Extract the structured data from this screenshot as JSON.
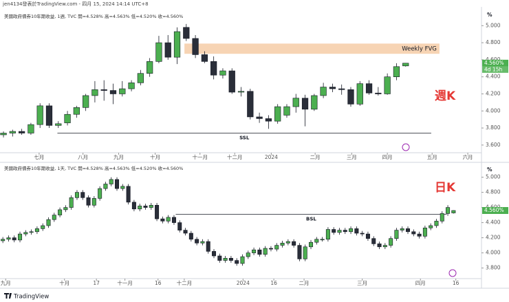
{
  "header": "jen4134發表於TradingView.com - 四月 15, 2024 14:14 UTC+8",
  "footer": "TradingView",
  "chart_data": [
    {
      "type": "candlestick",
      "legend": "美國政府債券10年期收益, 1週, TVC  開=4.528%  高=4.563%  低=4.520%  收=4.560%",
      "unit": "%",
      "annotation": "週K",
      "countdown": "4d 15h",
      "up_color": "#4caf50",
      "down_color": "#2a2e39",
      "open": [
        3.72,
        3.74,
        3.76,
        3.74,
        3.84,
        4.06,
        3.83,
        3.86,
        3.96,
        4.04,
        4.18,
        4.25,
        4.24,
        4.2,
        4.26,
        4.33,
        4.44,
        4.58,
        4.8,
        4.63,
        4.98,
        4.85,
        4.66,
        4.58,
        4.42,
        4.47,
        4.22,
        4.23,
        3.93,
        3.91,
        3.88,
        3.95,
        4.05,
        4.15,
        4.02,
        4.18,
        4.28,
        4.26,
        4.25,
        4.08,
        4.32,
        4.21,
        4.2,
        4.4,
        4.528
      ],
      "high": [
        3.76,
        3.78,
        3.79,
        3.86,
        4.09,
        4.09,
        3.88,
        4.0,
        4.06,
        4.2,
        4.35,
        4.36,
        4.32,
        4.35,
        4.36,
        4.48,
        4.62,
        4.88,
        4.89,
        4.98,
        5.02,
        4.89,
        4.7,
        4.64,
        4.5,
        4.5,
        4.28,
        4.26,
        3.98,
        3.95,
        4.08,
        4.08,
        4.2,
        4.19,
        4.2,
        4.33,
        4.32,
        4.31,
        4.28,
        4.35,
        4.36,
        4.28,
        4.44,
        4.56,
        4.563
      ],
      "low": [
        3.69,
        3.7,
        3.72,
        3.72,
        3.8,
        3.8,
        3.8,
        3.83,
        3.92,
        4.0,
        4.1,
        4.12,
        4.08,
        4.17,
        4.23,
        4.3,
        4.4,
        4.56,
        4.6,
        4.55,
        4.82,
        4.62,
        4.56,
        4.37,
        4.38,
        4.2,
        4.17,
        3.9,
        3.86,
        3.79,
        3.85,
        3.92,
        3.98,
        3.82,
        4.0,
        4.15,
        4.22,
        4.19,
        4.05,
        4.06,
        4.19,
        4.18,
        4.19,
        4.36,
        4.52
      ],
      "close": [
        3.74,
        3.76,
        3.74,
        3.84,
        4.06,
        3.83,
        3.85,
        3.96,
        4.04,
        4.18,
        4.25,
        4.24,
        4.2,
        4.26,
        4.33,
        4.44,
        4.58,
        4.8,
        4.63,
        4.93,
        4.85,
        4.66,
        4.58,
        4.42,
        4.47,
        4.22,
        4.23,
        3.93,
        3.91,
        3.88,
        4.05,
        4.05,
        4.15,
        4.02,
        4.18,
        4.28,
        4.26,
        4.25,
        4.08,
        4.32,
        4.21,
        4.2,
        4.4,
        4.52,
        4.56
      ],
      "last_price": {
        "value": 4.56,
        "label": "4.560%"
      },
      "xlim": [
        -0.38,
        52.3
      ],
      "ylim": [
        3.51,
        5.18
      ],
      "yticks": [
        {
          "value": 3.6,
          "label": "3.600"
        },
        {
          "value": 3.8,
          "label": "3.800"
        },
        {
          "value": 4.0,
          "label": "4.000"
        },
        {
          "value": 4.2,
          "label": "4.200"
        },
        {
          "value": 4.4,
          "label": "4.400"
        },
        {
          "value": 4.6,
          "label": "4.600"
        },
        {
          "value": 4.8,
          "label": "4.800"
        },
        {
          "value": 5.0,
          "label": "5.000"
        }
      ],
      "xticks": [
        {
          "value": 3.9,
          "label": "七月"
        },
        {
          "value": 8.7,
          "label": "八月"
        },
        {
          "value": 12.6,
          "label": "九月"
        },
        {
          "value": 16.6,
          "label": "十月"
        },
        {
          "value": 21.5,
          "label": "十一月"
        },
        {
          "value": 25.3,
          "label": "十二月"
        },
        {
          "value": 29.3,
          "label": "2024"
        },
        {
          "value": 34.1,
          "label": "二月"
        },
        {
          "value": 38.1,
          "label": "三月"
        },
        {
          "value": 42,
          "label": "四月"
        },
        {
          "value": 46.9,
          "label": "五月"
        },
        {
          "value": 50.8,
          "label": "六月"
        }
      ],
      "zones": [
        {
          "label": "Weekly FVG",
          "xlim": [
            19.8,
            47.7
          ],
          "ylim": [
            4.67,
            4.79
          ],
          "color": "#f7d4b4"
        }
      ],
      "lines": [
        {
          "label": "SSL",
          "xlim": [
            5.9,
            46.8
          ],
          "y": 3.74
        }
      ]
    },
    {
      "type": "candlestick",
      "legend": "美國政府債券10年期收益, 1天, TVC  開=4.528%  高=4.563%  低=4.520%  收=4.560%",
      "unit": "%",
      "annotation": "日K",
      "up_color": "#4caf50",
      "down_color": "#2a2e39",
      "open": [
        4.16,
        4.18,
        4.2,
        4.17,
        4.25,
        4.27,
        4.28,
        4.32,
        4.36,
        4.44,
        4.5,
        4.57,
        4.6,
        4.73,
        4.8,
        4.73,
        4.63,
        4.72,
        4.85,
        4.91,
        4.97,
        4.85,
        4.88,
        4.67,
        4.58,
        4.62,
        4.6,
        4.63,
        4.45,
        4.42,
        4.47,
        4.4,
        4.3,
        4.26,
        4.18,
        4.13,
        4.15,
        4.02,
        3.96,
        3.9,
        3.93,
        3.9,
        3.86,
        3.95,
        4.0,
        4.04,
        3.98,
        4.06,
        4.05,
        4.1,
        4.13,
        4.15,
        4.1,
        3.92,
        4.08,
        4.14,
        4.18,
        4.18,
        4.31,
        4.27,
        4.3,
        4.28,
        4.32,
        4.26,
        4.25,
        4.19,
        4.12,
        4.08,
        4.1,
        4.19,
        4.3,
        4.32,
        4.28,
        4.25,
        4.22,
        4.33,
        4.36,
        4.42,
        4.52,
        4.528
      ],
      "high": [
        4.21,
        4.23,
        4.23,
        4.28,
        4.3,
        4.31,
        4.35,
        4.39,
        4.47,
        4.53,
        4.6,
        4.63,
        4.76,
        4.83,
        4.83,
        4.76,
        4.75,
        4.88,
        4.94,
        5.0,
        5.0,
        4.91,
        4.91,
        4.7,
        4.65,
        4.65,
        4.66,
        4.66,
        4.48,
        4.5,
        4.5,
        4.43,
        4.33,
        4.29,
        4.21,
        4.18,
        4.18,
        4.05,
        3.99,
        3.96,
        3.96,
        3.93,
        3.98,
        4.03,
        4.07,
        4.07,
        4.09,
        4.09,
        4.13,
        4.16,
        4.18,
        4.18,
        4.13,
        4.11,
        4.17,
        4.21,
        4.21,
        4.34,
        4.34,
        4.33,
        4.33,
        4.35,
        4.35,
        4.29,
        4.28,
        4.22,
        4.15,
        4.13,
        4.22,
        4.33,
        4.35,
        4.35,
        4.31,
        4.28,
        4.36,
        4.39,
        4.45,
        4.55,
        4.63,
        4.563
      ],
      "low": [
        4.13,
        4.15,
        4.14,
        4.14,
        4.22,
        4.24,
        4.25,
        4.29,
        4.33,
        4.41,
        4.47,
        4.54,
        4.57,
        4.7,
        4.7,
        4.6,
        4.6,
        4.69,
        4.82,
        4.88,
        4.82,
        4.82,
        4.64,
        4.55,
        4.55,
        4.57,
        4.57,
        4.42,
        4.39,
        4.39,
        4.37,
        4.27,
        4.23,
        4.15,
        4.1,
        4.1,
        3.99,
        3.93,
        3.87,
        3.87,
        3.87,
        3.83,
        3.83,
        3.92,
        3.97,
        3.95,
        3.95,
        4.02,
        4.02,
        4.07,
        4.1,
        4.07,
        3.89,
        3.89,
        4.05,
        4.11,
        4.15,
        4.15,
        4.24,
        4.24,
        4.25,
        4.25,
        4.23,
        4.22,
        4.16,
        4.09,
        4.05,
        4.05,
        4.07,
        4.16,
        4.27,
        4.25,
        4.22,
        4.19,
        4.19,
        4.3,
        4.33,
        4.39,
        4.49,
        4.52
      ],
      "close": [
        4.18,
        4.2,
        4.17,
        4.25,
        4.27,
        4.28,
        4.32,
        4.36,
        4.44,
        4.5,
        4.57,
        4.6,
        4.73,
        4.8,
        4.73,
        4.63,
        4.72,
        4.85,
        4.91,
        4.97,
        4.85,
        4.88,
        4.67,
        4.58,
        4.62,
        4.6,
        4.63,
        4.45,
        4.42,
        4.47,
        4.4,
        4.3,
        4.26,
        4.18,
        4.13,
        4.15,
        4.02,
        3.96,
        3.9,
        3.93,
        3.9,
        3.86,
        3.95,
        4.0,
        4.04,
        3.98,
        4.06,
        4.05,
        4.1,
        4.13,
        4.15,
        4.1,
        3.92,
        4.08,
        4.14,
        4.18,
        4.18,
        4.31,
        4.27,
        4.3,
        4.28,
        4.32,
        4.26,
        4.25,
        4.19,
        4.12,
        4.08,
        4.1,
        4.19,
        4.3,
        4.32,
        4.28,
        4.25,
        4.22,
        4.33,
        4.36,
        4.42,
        4.52,
        4.6,
        4.56
      ],
      "last_price": {
        "value": 4.56,
        "label": "4.560%"
      },
      "xlim": [
        -0.5,
        83.9
      ],
      "ylim": [
        3.66,
        5.16
      ],
      "yticks": [
        {
          "value": 3.8,
          "label": "3.800"
        },
        {
          "value": 4.0,
          "label": "4.000"
        },
        {
          "value": 4.2,
          "label": "4.200"
        },
        {
          "value": 4.4,
          "label": "4.400"
        },
        {
          "value": 4.6,
          "label": "4.600"
        },
        {
          "value": 4.8,
          "label": "4.800"
        },
        {
          "value": 5.0,
          "label": "5.000"
        }
      ],
      "xticks": [
        {
          "value": 0.5,
          "label": "九月"
        },
        {
          "value": 10.8,
          "label": "十月"
        },
        {
          "value": 16.4,
          "label": "17"
        },
        {
          "value": 21.4,
          "label": "十一月"
        },
        {
          "value": 27.2,
          "label": "16"
        },
        {
          "value": 31.8,
          "label": "十二月"
        },
        {
          "value": 42.1,
          "label": "2024"
        },
        {
          "value": 47.5,
          "label": "16"
        },
        {
          "value": 52.8,
          "label": "二月"
        },
        {
          "value": 63.0,
          "label": "三月"
        },
        {
          "value": 73.2,
          "label": "四月"
        },
        {
          "value": 79.4,
          "label": "16"
        }
      ],
      "zones": [],
      "lines": [
        {
          "label": "BSL",
          "xlim": [
            30.3,
            77.8
          ],
          "y": 4.51
        }
      ]
    }
  ]
}
